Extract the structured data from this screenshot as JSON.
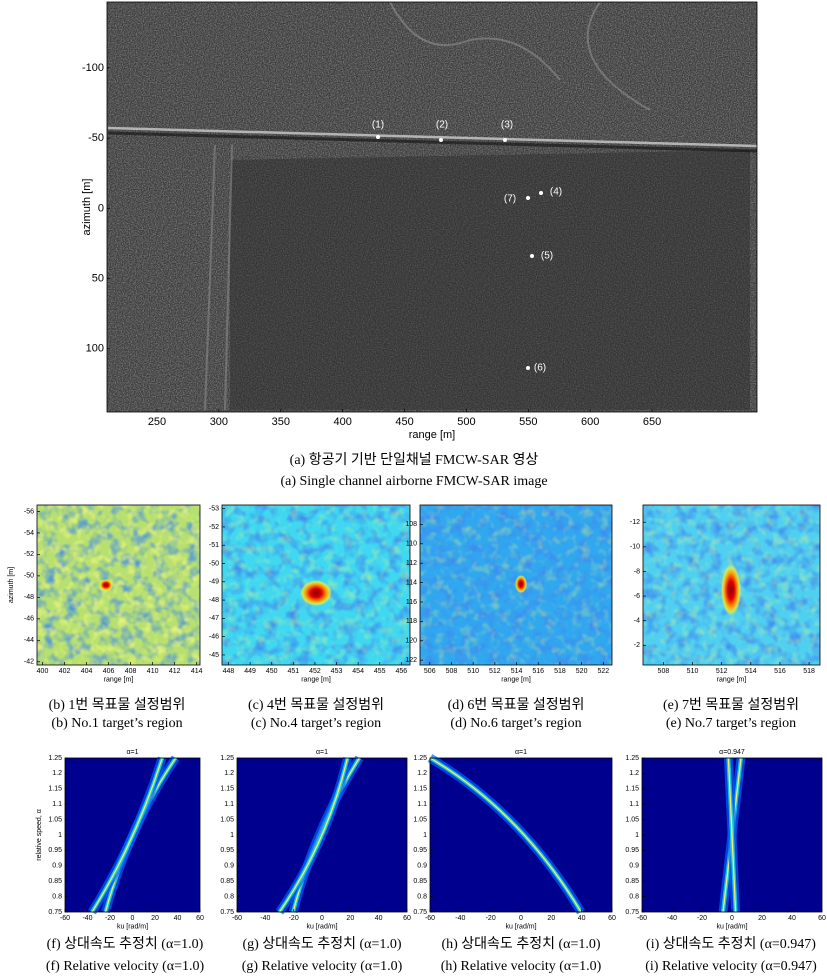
{
  "figure_a": {
    "xlabel": "range [m]",
    "ylabel": "azimuth [m]",
    "xlim": [
      209.6,
      734.8
    ],
    "ylim": [
      -147,
      145
    ],
    "y_inverted": true,
    "xticks": [
      250,
      300,
      350,
      400,
      450,
      500,
      550,
      600,
      650
    ],
    "yticks": [
      -100,
      -50,
      0,
      50,
      100
    ],
    "targets": [
      "(1)",
      "(2)",
      "(3)",
      "(7)",
      "(4)",
      "(5)",
      "(6)"
    ],
    "caption_ko": "(a) 항공기 기반 단일채널 FMCW-SAR 영상",
    "caption_en": "(a) Single channel airborne FMCW-SAR image"
  },
  "regions": [
    {
      "ylabel": "azimuth [m]",
      "xlabel": "range [m]",
      "xlim": [
        399.5,
        414.3
      ],
      "ylim": [
        -56.6,
        -41.7
      ],
      "y_inverted": true,
      "xticks": [
        400,
        402,
        404,
        406,
        408,
        410,
        412,
        414
      ],
      "yticks": [
        -56,
        -54,
        -52,
        -50,
        -48,
        -46,
        -44,
        -42
      ],
      "caption_ko": "(b) 1번 목표물 설정범위",
      "caption_en": "(b) No.1 target’s region"
    },
    {
      "xlabel": "range [m]",
      "xlim": [
        447.7,
        456.4
      ],
      "ylim": [
        -53.2,
        -44.45
      ],
      "y_inverted": true,
      "xticks": [
        448,
        449,
        450,
        451,
        452,
        453,
        454,
        455,
        456
      ],
      "yticks": [
        -53,
        -52,
        -51,
        -50,
        -49,
        -48,
        -47,
        -46,
        -45
      ],
      "caption_ko": "(c) 4번 목표물 설정범위",
      "caption_en": "(c) No.4 target’s region"
    },
    {
      "xlabel": "range [m]",
      "xlim": [
        505.1,
        522.8
      ],
      "ylim": [
        106.0,
        122.5
      ],
      "y_inverted": true,
      "xticks": [
        506,
        508,
        510,
        512,
        514,
        516,
        518,
        520,
        522
      ],
      "yticks": [
        108,
        110,
        112,
        114,
        116,
        118,
        120,
        122
      ],
      "caption_ko": "(d) 6번 목표물 설정범위",
      "caption_en": "(d) No.6 target’s region"
    },
    {
      "xlabel": "range [m]",
      "xlim": [
        506.6,
        518.75
      ],
      "ylim": [
        -13.4,
        -0.4
      ],
      "y_inverted": true,
      "xticks": [
        508,
        510,
        512,
        514,
        516,
        518
      ],
      "yticks": [
        -12,
        -10,
        -8,
        -6,
        -4,
        -2
      ],
      "caption_ko": "(e) 7번 목표물 설정범위",
      "caption_en": "(e) No.7 target’s region"
    }
  ],
  "velocity": [
    {
      "title": "α=1",
      "ylabel": "relative speed, α",
      "xlabel": "ku [rad/m]",
      "xlim": [
        -60,
        60
      ],
      "ylim": [
        0.75,
        1.25
      ],
      "xticks": [
        -60,
        -40,
        -20,
        0,
        20,
        40,
        60
      ],
      "yticks": [
        0.75,
        0.8,
        0.85,
        0.9,
        0.95,
        1,
        1.05,
        1.1,
        1.15,
        1.2,
        1.25
      ],
      "caption_ko": "(f) 상대속도 추정치 (α=1.0)",
      "caption_en": "(f) Relative velocity (α=1.0)"
    },
    {
      "title": "α=1",
      "xlabel": "ku [rad/m]",
      "xlim": [
        -60,
        60
      ],
      "ylim": [
        0.75,
        1.25
      ],
      "xticks": [
        -60,
        -40,
        -20,
        0,
        20,
        40,
        60
      ],
      "yticks": [
        0.75,
        0.8,
        0.85,
        0.9,
        0.95,
        1,
        1.05,
        1.1,
        1.15,
        1.2,
        1.25
      ],
      "caption_ko": "(g) 상대속도 추정치 (α=1.0)",
      "caption_en": "(g) Relative velocity (α=1.0)"
    },
    {
      "title": "α=1",
      "xlabel": "ku [rad/m]",
      "xlim": [
        -60,
        60
      ],
      "ylim": [
        0.75,
        1.25
      ],
      "xticks": [
        -60,
        -40,
        -20,
        0,
        20,
        40,
        60
      ],
      "yticks": [
        0.75,
        0.8,
        0.85,
        0.9,
        0.95,
        1,
        1.05,
        1.1,
        1.15,
        1.2,
        1.25
      ],
      "caption_ko": "(h) 상대속도 추정치 (α=1.0)",
      "caption_en": "(h) Relative velocity (α=1.0)"
    },
    {
      "title": "α=0.947",
      "xlabel": "ku [rad/m]",
      "xlim": [
        -60,
        60
      ],
      "ylim": [
        0.75,
        1.25
      ],
      "xticks": [
        -60,
        -40,
        -20,
        0,
        20,
        40,
        60
      ],
      "yticks": [
        0.75,
        0.8,
        0.85,
        0.9,
        0.95,
        1,
        1.05,
        1.1,
        1.15,
        1.2,
        1.25
      ],
      "caption_ko": "(i) 상대속도 추정치 (α=0.947)",
      "caption_en": "(i) Relative velocity (α=0.947)"
    }
  ]
}
